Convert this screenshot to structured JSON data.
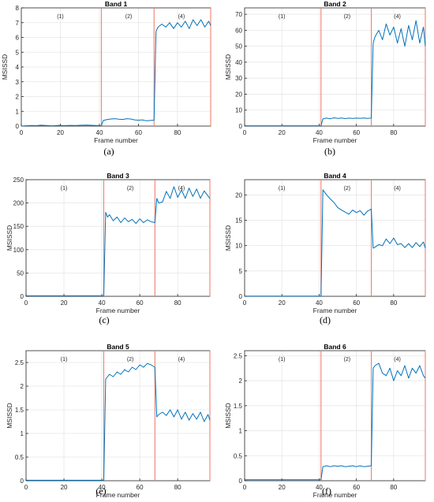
{
  "colors": {
    "line": "#0072BD",
    "divider": "#F08070",
    "grid": "#E6E6E6",
    "axis": "#262626"
  },
  "chart_data": [
    {
      "type": "line",
      "title": "Band 1",
      "xlabel": "Frame number",
      "ylabel": "MSISSD",
      "sublabel": "(a)",
      "xlim": [
        0,
        97
      ],
      "ylim": [
        0,
        8
      ],
      "xticks": [
        0,
        20,
        40,
        60,
        80
      ],
      "yticks": [
        0,
        1,
        2,
        3,
        4,
        5,
        6,
        7,
        8
      ],
      "dividers": [
        41,
        68,
        97
      ],
      "regions": [
        {
          "x": 20,
          "label": "(1)"
        },
        {
          "x": 55,
          "label": "(2)"
        },
        {
          "x": 82,
          "label": "(4)"
        }
      ],
      "grid": true,
      "series": [
        {
          "x": [
            0,
            2,
            5,
            8,
            10,
            13,
            16,
            19,
            22,
            25,
            28,
            31,
            34,
            37,
            40,
            41,
            42,
            44,
            46,
            48,
            50,
            52,
            54,
            56,
            58,
            60,
            62,
            64,
            66,
            68,
            69,
            70,
            72,
            74,
            76,
            78,
            80,
            82,
            84,
            86,
            88,
            90,
            92,
            94,
            96,
            97
          ],
          "y": [
            0,
            0.02,
            0.04,
            0.03,
            0.06,
            0.04,
            0.02,
            0.05,
            0.03,
            0.05,
            0.04,
            0.06,
            0.07,
            0.05,
            0.03,
            0.03,
            0.38,
            0.45,
            0.48,
            0.5,
            0.47,
            0.45,
            0.5,
            0.48,
            0.42,
            0.4,
            0.42,
            0.36,
            0.38,
            0.4,
            6.4,
            6.7,
            6.9,
            6.7,
            7.0,
            6.6,
            7.0,
            6.7,
            7.1,
            6.6,
            7.2,
            6.8,
            7.2,
            6.7,
            7.1,
            6.8
          ]
        }
      ]
    },
    {
      "type": "line",
      "title": "Band 2",
      "xlabel": "Frame number",
      "ylabel": "MSISSD",
      "sublabel": "(b)",
      "xlim": [
        0,
        97
      ],
      "ylim": [
        0,
        74
      ],
      "xticks": [
        0,
        20,
        40,
        60,
        80
      ],
      "yticks": [
        0,
        10,
        20,
        30,
        40,
        50,
        60,
        70
      ],
      "dividers": [
        41,
        68,
        97
      ],
      "regions": [
        {
          "x": 20,
          "label": "(1)"
        },
        {
          "x": 55,
          "label": "(2)"
        },
        {
          "x": 82,
          "label": "(4)"
        }
      ],
      "grid": true,
      "series": [
        {
          "x": [
            0,
            5,
            10,
            15,
            20,
            25,
            30,
            35,
            40,
            41,
            42,
            44,
            46,
            48,
            50,
            52,
            54,
            56,
            58,
            60,
            62,
            64,
            66,
            68,
            69,
            70,
            72,
            74,
            76,
            78,
            80,
            82,
            84,
            86,
            88,
            90,
            92,
            94,
            96,
            97
          ],
          "y": [
            0.2,
            0.2,
            0.2,
            0.2,
            0.2,
            0.2,
            0.2,
            0.2,
            0.2,
            0.2,
            4.5,
            5.0,
            4.6,
            5.2,
            4.8,
            5.1,
            4.7,
            5.0,
            4.8,
            5.0,
            4.9,
            5.1,
            4.8,
            5.0,
            52,
            56,
            60,
            54,
            64,
            57,
            62,
            52,
            61,
            50,
            63,
            54,
            66,
            52,
            62,
            50
          ]
        }
      ]
    },
    {
      "type": "line",
      "title": "Band 3",
      "xlabel": "Frame number",
      "ylabel": "MSISSD",
      "sublabel": "(c)",
      "xlim": [
        0,
        97
      ],
      "ylim": [
        0,
        250
      ],
      "xticks": [
        0,
        20,
        40,
        60,
        80
      ],
      "yticks": [
        0,
        50,
        100,
        150,
        200,
        250
      ],
      "dividers": [
        41,
        68,
        97
      ],
      "regions": [
        {
          "x": 20,
          "label": "(1)"
        },
        {
          "x": 55,
          "label": "(2)"
        },
        {
          "x": 82,
          "label": "(4)"
        }
      ],
      "grid": true,
      "series": [
        {
          "x": [
            0,
            5,
            10,
            15,
            20,
            25,
            30,
            35,
            40,
            41,
            42,
            43,
            44,
            46,
            48,
            50,
            52,
            54,
            56,
            58,
            60,
            62,
            64,
            66,
            68,
            69,
            70,
            72,
            74,
            76,
            78,
            80,
            82,
            84,
            86,
            88,
            90,
            92,
            94,
            96,
            97
          ],
          "y": [
            1,
            1,
            1,
            1,
            1,
            1,
            1,
            1,
            1,
            1,
            180,
            170,
            175,
            162,
            170,
            158,
            168,
            160,
            165,
            156,
            166,
            158,
            164,
            160,
            158,
            210,
            200,
            202,
            225,
            210,
            235,
            212,
            228,
            210,
            232,
            214,
            230,
            210,
            226,
            215,
            210
          ]
        }
      ]
    },
    {
      "type": "line",
      "title": "Band 4",
      "xlabel": "Frame number",
      "ylabel": "MSISSD",
      "sublabel": "(d)",
      "xlim": [
        0,
        97
      ],
      "ylim": [
        0,
        23
      ],
      "xticks": [
        0,
        20,
        40,
        60,
        80
      ],
      "yticks": [
        0,
        5,
        10,
        15,
        20
      ],
      "dividers": [
        41,
        68,
        97
      ],
      "regions": [
        {
          "x": 20,
          "label": "(1)"
        },
        {
          "x": 55,
          "label": "(2)"
        },
        {
          "x": 82,
          "label": "(4)"
        }
      ],
      "grid": true,
      "series": [
        {
          "x": [
            0,
            5,
            10,
            15,
            20,
            25,
            30,
            35,
            40,
            41,
            42,
            44,
            46,
            48,
            50,
            52,
            54,
            56,
            58,
            60,
            62,
            64,
            66,
            68,
            69,
            70,
            72,
            74,
            76,
            78,
            80,
            82,
            84,
            86,
            88,
            90,
            92,
            94,
            96,
            97
          ],
          "y": [
            0.05,
            0.05,
            0.05,
            0.05,
            0.05,
            0.05,
            0.05,
            0.05,
            0.05,
            0.05,
            21,
            20,
            19.2,
            18.5,
            17.5,
            17,
            16.6,
            16.2,
            17,
            16.5,
            16.9,
            16,
            16.8,
            17.2,
            9.5,
            9.7,
            10.2,
            10,
            11.3,
            10.4,
            11.5,
            10.2,
            10.4,
            9.6,
            10.4,
            9.6,
            10.6,
            9.8,
            10.7,
            9.5
          ]
        }
      ]
    },
    {
      "type": "line",
      "title": "Band 5",
      "xlabel": "Frame number",
      "ylabel": "MSISSD",
      "sublabel": "(e)",
      "xlim": [
        0,
        97
      ],
      "ylim": [
        0,
        2.75
      ],
      "xticks": [
        0,
        20,
        40,
        60,
        80
      ],
      "yticks": [
        0,
        0.5,
        1,
        1.5,
        2,
        2.5
      ],
      "dividers": [
        41,
        68,
        97
      ],
      "regions": [
        {
          "x": 20,
          "label": "(1)"
        },
        {
          "x": 55,
          "label": "(2)"
        },
        {
          "x": 82,
          "label": "(4)"
        }
      ],
      "grid": true,
      "series": [
        {
          "x": [
            0,
            5,
            10,
            15,
            20,
            25,
            30,
            35,
            40,
            41,
            42,
            44,
            46,
            48,
            50,
            52,
            54,
            56,
            58,
            60,
            62,
            64,
            66,
            68,
            69,
            70,
            72,
            74,
            76,
            78,
            80,
            82,
            84,
            86,
            88,
            90,
            92,
            94,
            96,
            97
          ],
          "y": [
            0.01,
            0.01,
            0.01,
            0.01,
            0.01,
            0.01,
            0.01,
            0.01,
            0.01,
            0.01,
            2.15,
            2.25,
            2.2,
            2.3,
            2.25,
            2.35,
            2.3,
            2.4,
            2.35,
            2.45,
            2.4,
            2.48,
            2.45,
            2.4,
            1.35,
            1.4,
            1.45,
            1.38,
            1.5,
            1.35,
            1.5,
            1.3,
            1.45,
            1.28,
            1.42,
            1.3,
            1.45,
            1.25,
            1.4,
            1.28
          ]
        }
      ]
    },
    {
      "type": "line",
      "title": "Band 6",
      "xlabel": "Frame number",
      "ylabel": "MSISSD",
      "sublabel": "(f)",
      "xlim": [
        0,
        97
      ],
      "ylim": [
        0,
        2.6
      ],
      "xticks": [
        0,
        20,
        40,
        60,
        80
      ],
      "yticks": [
        0,
        0.5,
        1,
        1.5,
        2,
        2.5
      ],
      "dividers": [
        41,
        68,
        97
      ],
      "regions": [
        {
          "x": 20,
          "label": "(1)"
        },
        {
          "x": 55,
          "label": "(2)"
        },
        {
          "x": 82,
          "label": "(4)"
        }
      ],
      "grid": true,
      "series": [
        {
          "x": [
            0,
            5,
            10,
            15,
            20,
            25,
            30,
            35,
            40,
            41,
            42,
            44,
            46,
            48,
            50,
            52,
            54,
            56,
            58,
            60,
            62,
            64,
            66,
            68,
            69,
            70,
            72,
            74,
            76,
            78,
            80,
            82,
            84,
            86,
            88,
            90,
            92,
            94,
            96,
            97
          ],
          "y": [
            0.02,
            0.02,
            0.02,
            0.02,
            0.02,
            0.02,
            0.02,
            0.02,
            0.02,
            0.02,
            0.28,
            0.3,
            0.28,
            0.3,
            0.29,
            0.3,
            0.28,
            0.29,
            0.3,
            0.28,
            0.3,
            0.28,
            0.29,
            0.3,
            2.25,
            2.3,
            2.35,
            2.15,
            2.1,
            2.25,
            2.0,
            2.2,
            2.1,
            2.3,
            2.05,
            2.25,
            2.15,
            2.3,
            2.1,
            2.05
          ]
        }
      ]
    }
  ]
}
